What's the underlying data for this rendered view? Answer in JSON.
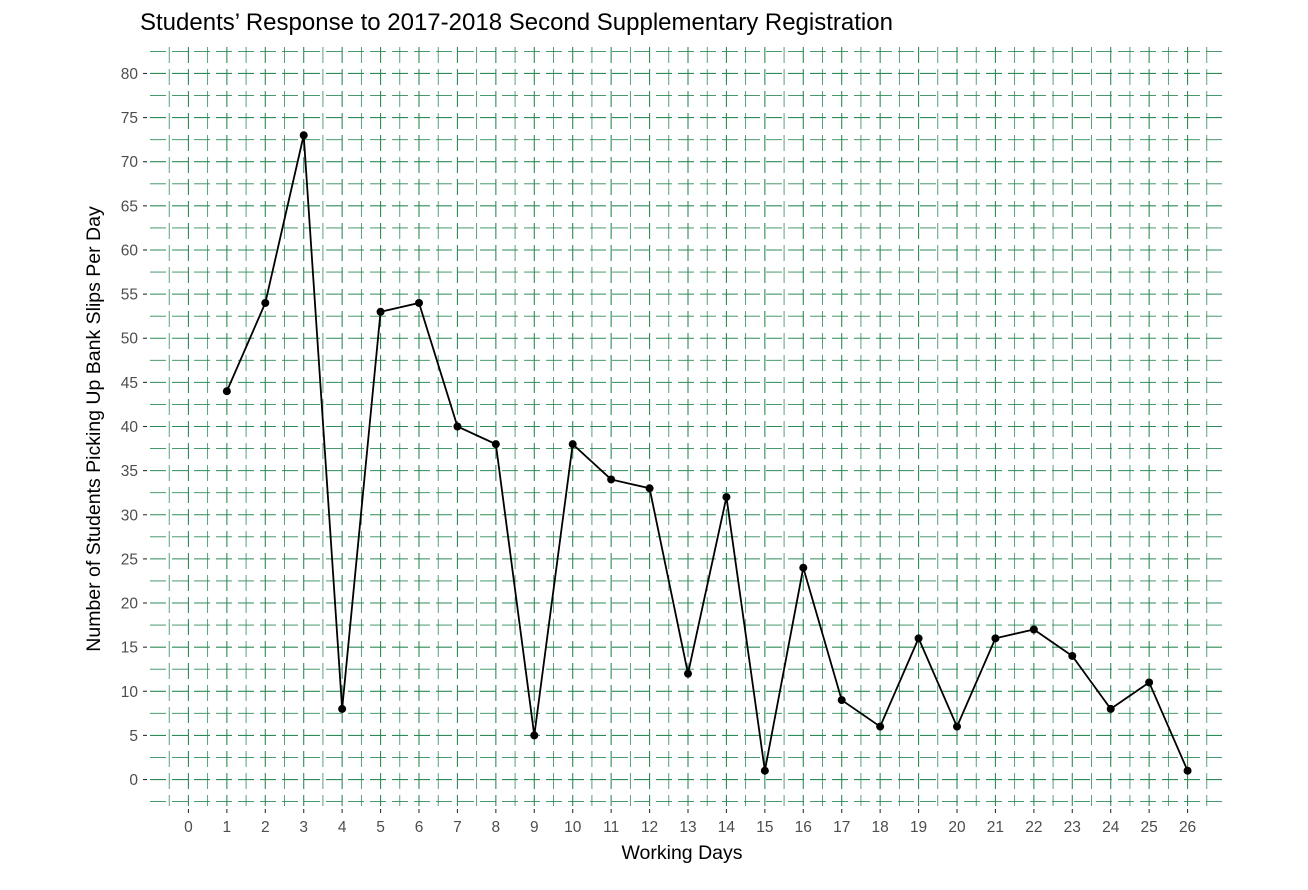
{
  "chart_data": {
    "type": "line",
    "title": "Students’ Response to 2017-2018 Second Supplementary Registration",
    "xlabel": "Working Days",
    "ylabel": "Number of Students Picking Up Bank Slips Per Day",
    "x": [
      1,
      2,
      3,
      4,
      5,
      6,
      7,
      8,
      9,
      10,
      11,
      12,
      13,
      14,
      15,
      16,
      17,
      18,
      19,
      20,
      21,
      22,
      23,
      24,
      25,
      26
    ],
    "series": [
      {
        "values": [
          44,
          54,
          73,
          8,
          53,
          54,
          40,
          38,
          5,
          38,
          34,
          33,
          12,
          32,
          1,
          24,
          9,
          6,
          16,
          6,
          16,
          17,
          14,
          8,
          11,
          1
        ]
      }
    ],
    "xlim": [
      -1,
      27
    ],
    "ylim": [
      -3,
      83
    ],
    "x_ticks": [
      "0",
      "1",
      "2",
      "3",
      "4",
      "5",
      "6",
      "7",
      "8",
      "9",
      "10",
      "11",
      "12",
      "13",
      "14",
      "15",
      "16",
      "17",
      "18",
      "19",
      "20",
      "21",
      "22",
      "23",
      "24",
      "25",
      "26"
    ],
    "y_ticks": [
      "0",
      "5",
      "10",
      "15",
      "20",
      "25",
      "30",
      "35",
      "40",
      "45",
      "50",
      "55",
      "60",
      "65",
      "70",
      "75",
      "80"
    ],
    "grid": true,
    "grid_color": "#2e8b57",
    "line_color": "#000000",
    "point_color": "#000000",
    "legend": "none"
  }
}
